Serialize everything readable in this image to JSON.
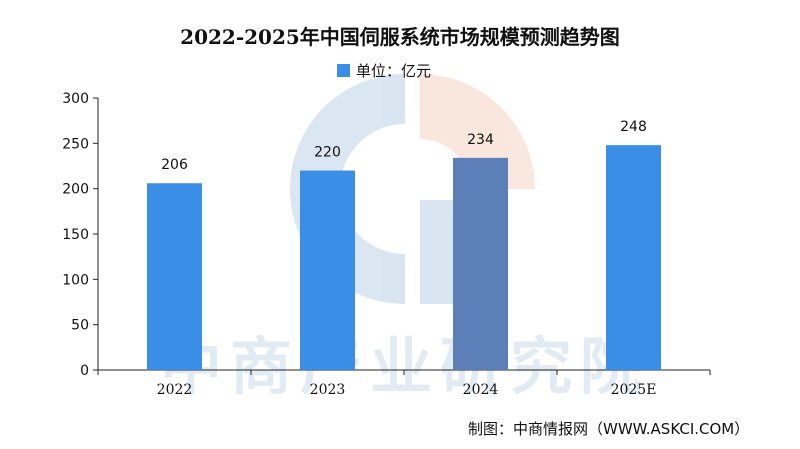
{
  "chart_data": {
    "type": "bar",
    "title": "2022-2025年中国伺服系统市场规模预测趋势图",
    "legend": {
      "label": "单位：亿元",
      "placement": "top-center"
    },
    "categories": [
      "2022",
      "2023",
      "2024",
      "2025E"
    ],
    "values": [
      206,
      220,
      234,
      248
    ],
    "data_labels": [
      "206",
      "220",
      "234",
      "248"
    ],
    "ylim": [
      0,
      300
    ],
    "yticks": [
      0,
      50,
      100,
      150,
      200,
      250,
      300
    ],
    "xlabel": "",
    "ylabel": "",
    "grid": false,
    "colors": {
      "bar": "#3a8ee6",
      "bar_overlay": "#5c7fb8",
      "axis": "#222222"
    }
  },
  "watermark": {
    "text": "中商产业研究院"
  },
  "source": {
    "text": "制图：中商情报网（WWW.ASKCI.COM）"
  }
}
